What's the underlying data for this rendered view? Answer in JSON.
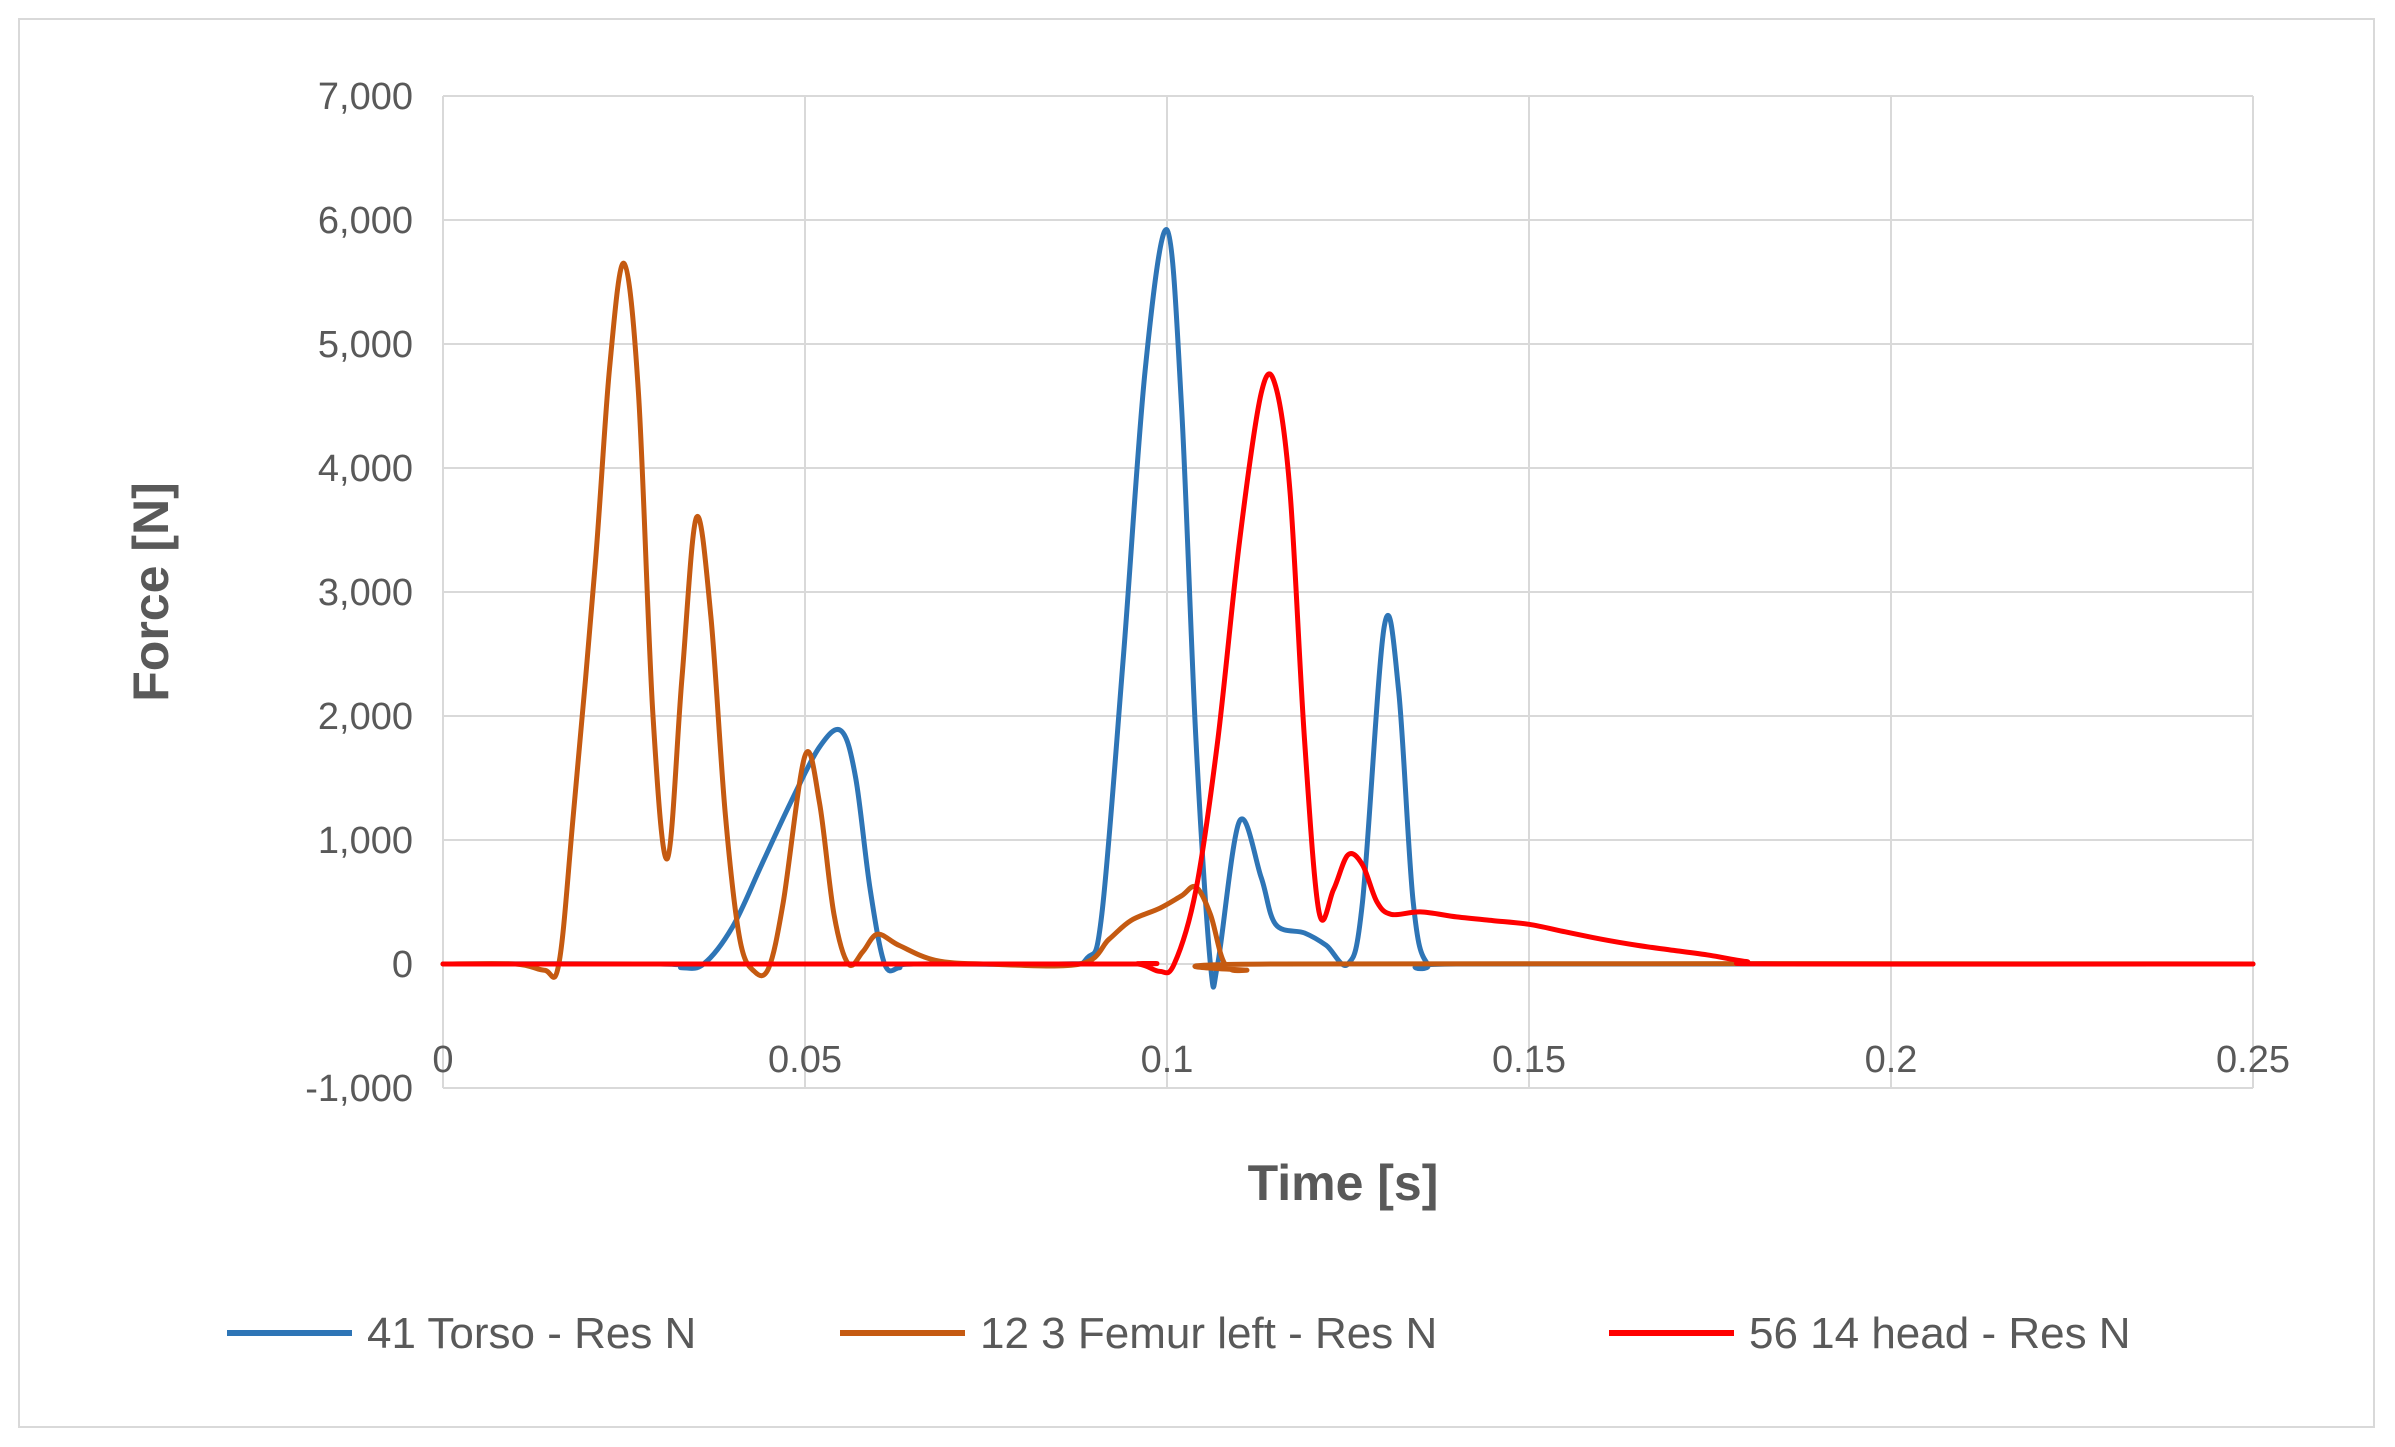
{
  "chart_data": {
    "type": "line",
    "xlabel": "Time [s]",
    "ylabel": "Force [N]",
    "xlim": [
      0,
      0.25
    ],
    "ylim": [
      -1000,
      7000
    ],
    "x_ticks": [
      0,
      0.05,
      0.1,
      0.15,
      0.2,
      0.25
    ],
    "x_tick_labels": [
      "0",
      "0.05",
      "0.1",
      "0.15",
      "0.2",
      "0.25"
    ],
    "y_ticks": [
      -1000,
      0,
      1000,
      2000,
      3000,
      4000,
      5000,
      6000,
      7000
    ],
    "y_tick_labels": [
      "-1,000",
      "0",
      "1,000",
      "2,000",
      "3,000",
      "4,000",
      "5,000",
      "6,000",
      "7,000"
    ],
    "grid": true,
    "legend_position": "bottom",
    "series": [
      {
        "name": "41 Torso - Res N",
        "color": "#2e75b6",
        "points": [
          [
            0,
            0
          ],
          [
            0.03,
            0
          ],
          [
            0.033,
            -30
          ],
          [
            0.036,
            0
          ],
          [
            0.04,
            300
          ],
          [
            0.044,
            800
          ],
          [
            0.048,
            1300
          ],
          [
            0.052,
            1750
          ],
          [
            0.055,
            1880
          ],
          [
            0.057,
            1500
          ],
          [
            0.059,
            600
          ],
          [
            0.061,
            0
          ],
          [
            0.063,
            -30
          ],
          [
            0.065,
            0
          ],
          [
            0.085,
            0
          ],
          [
            0.089,
            50
          ],
          [
            0.091,
            400
          ],
          [
            0.094,
            2500
          ],
          [
            0.097,
            4800
          ],
          [
            0.1,
            5920
          ],
          [
            0.102,
            4500
          ],
          [
            0.104,
            1800
          ],
          [
            0.106,
            0
          ],
          [
            0.107,
            0
          ],
          [
            0.11,
            1150
          ],
          [
            0.113,
            700
          ],
          [
            0.115,
            320
          ],
          [
            0.119,
            250
          ],
          [
            0.122,
            150
          ],
          [
            0.125,
            0
          ],
          [
            0.127,
            500
          ],
          [
            0.13,
            2720
          ],
          [
            0.132,
            2200
          ],
          [
            0.134,
            500
          ],
          [
            0.136,
            0
          ],
          [
            0.14,
            0
          ],
          [
            0.2,
            0
          ],
          [
            0.25,
            0
          ]
        ]
      },
      {
        "name": "12 3 Femur left - Res N",
        "color": "#c55a11",
        "points": [
          [
            0,
            0
          ],
          [
            0.01,
            0
          ],
          [
            0.014,
            -50
          ],
          [
            0.016,
            0
          ],
          [
            0.018,
            1200
          ],
          [
            0.021,
            3200
          ],
          [
            0.023,
            4800
          ],
          [
            0.025,
            5650
          ],
          [
            0.027,
            4600
          ],
          [
            0.029,
            2000
          ],
          [
            0.031,
            850
          ],
          [
            0.033,
            2300
          ],
          [
            0.035,
            3600
          ],
          [
            0.037,
            2800
          ],
          [
            0.039,
            1200
          ],
          [
            0.041,
            200
          ],
          [
            0.043,
            -60
          ],
          [
            0.045,
            -30
          ],
          [
            0.047,
            500
          ],
          [
            0.05,
            1680
          ],
          [
            0.052,
            1300
          ],
          [
            0.054,
            400
          ],
          [
            0.056,
            0
          ],
          [
            0.058,
            100
          ],
          [
            0.06,
            240
          ],
          [
            0.063,
            150
          ],
          [
            0.068,
            30
          ],
          [
            0.075,
            0
          ],
          [
            0.088,
            0
          ],
          [
            0.092,
            200
          ],
          [
            0.095,
            350
          ],
          [
            0.099,
            450
          ],
          [
            0.102,
            550
          ],
          [
            0.104,
            620
          ],
          [
            0.106,
            400
          ],
          [
            0.108,
            0
          ],
          [
            0.111,
            -50
          ],
          [
            0.115,
            0
          ],
          [
            0.25,
            0
          ]
        ]
      },
      {
        "name": "56 14 head - Res N",
        "color": "#ff0000",
        "points": [
          [
            0,
            0
          ],
          [
            0.09,
            0
          ],
          [
            0.096,
            0
          ],
          [
            0.099,
            -60
          ],
          [
            0.101,
            0
          ],
          [
            0.104,
            600
          ],
          [
            0.107,
            1800
          ],
          [
            0.11,
            3400
          ],
          [
            0.113,
            4600
          ],
          [
            0.115,
            4660
          ],
          [
            0.117,
            3800
          ],
          [
            0.119,
            1800
          ],
          [
            0.121,
            420
          ],
          [
            0.123,
            600
          ],
          [
            0.125,
            880
          ],
          [
            0.127,
            800
          ],
          [
            0.129,
            500
          ],
          [
            0.131,
            400
          ],
          [
            0.135,
            420
          ],
          [
            0.14,
            380
          ],
          [
            0.145,
            350
          ],
          [
            0.15,
            320
          ],
          [
            0.155,
            260
          ],
          [
            0.16,
            200
          ],
          [
            0.165,
            150
          ],
          [
            0.17,
            110
          ],
          [
            0.175,
            70
          ],
          [
            0.18,
            20
          ],
          [
            0.185,
            0
          ],
          [
            0.25,
            0
          ]
        ]
      }
    ]
  }
}
